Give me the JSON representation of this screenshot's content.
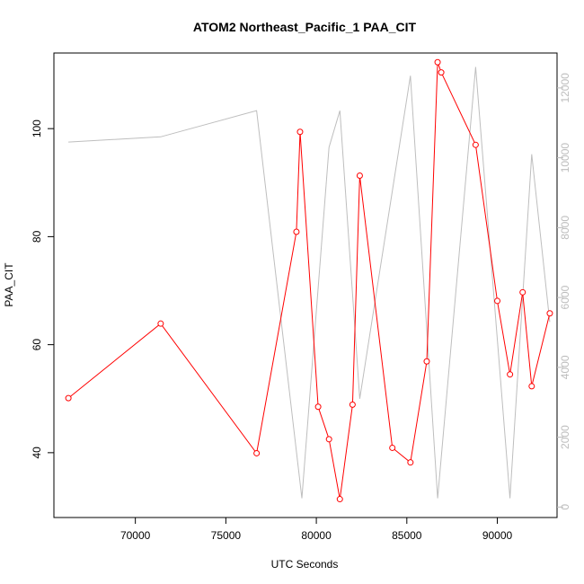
{
  "chart_data": {
    "type": "line",
    "title": "ATOM2 Northeast_Pacific_1 PAA_CIT",
    "xlabel": "UTC Seconds",
    "ylabel": "PAA_CIT",
    "xlim": [
      65500,
      93300
    ],
    "ylim": [
      28,
      114
    ],
    "y2lim": [
      -300,
      13000
    ],
    "x_ticks": [
      70000,
      75000,
      80000,
      85000,
      90000
    ],
    "y_ticks": [
      40,
      60,
      80,
      100
    ],
    "y2_ticks": [
      0,
      2000,
      4000,
      6000,
      8000,
      10000,
      12000
    ],
    "x_tick_labels": [
      "70000",
      "75000",
      "80000",
      "85000",
      "90000"
    ],
    "y_tick_labels": [
      "40",
      "60",
      "80",
      "100"
    ],
    "y2_tick_labels": [
      "0",
      "2000",
      "4000",
      "6000",
      "8000",
      "10000",
      "12000"
    ],
    "grid": false,
    "series": [
      {
        "color": "#ff0000",
        "axis": "left",
        "markers": true,
        "x": [
          66300,
          71400,
          76700,
          78900,
          79100,
          80100,
          80700,
          81300,
          82000,
          82400,
          84200,
          85200,
          86100,
          86700,
          86900,
          88800,
          90000,
          90700,
          91400,
          91900,
          92900
        ],
        "y": [
          50.1,
          63.9,
          39.9,
          80.9,
          99.4,
          48.5,
          42.5,
          31.4,
          48.9,
          91.3,
          40.9,
          38.2,
          56.9,
          112.3,
          110.4,
          97.0,
          68.1,
          54.5,
          69.7,
          52.3,
          65.8
        ]
      },
      {
        "color": "#bebebe",
        "axis": "right",
        "markers": false,
        "x": [
          66300,
          71400,
          76700,
          79200,
          80700,
          81300,
          82400,
          85200,
          86700,
          88800,
          90700,
          91900,
          92900
        ],
        "y": [
          10450,
          10600,
          11350,
          250,
          10300,
          11350,
          3100,
          12350,
          250,
          12600,
          250,
          10100,
          5300
        ]
      }
    ]
  }
}
